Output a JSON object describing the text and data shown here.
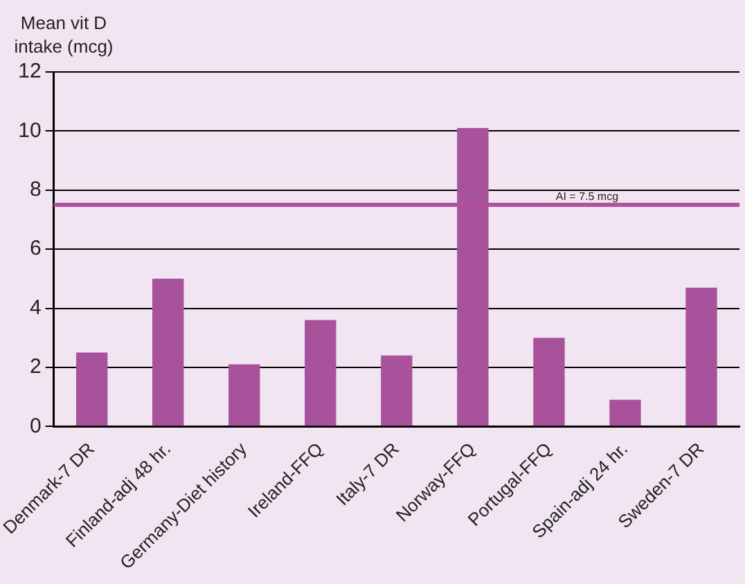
{
  "chart_data": {
    "type": "bar",
    "ylabel": "Mean vit D intake (mcg)",
    "categories": [
      "Denmark-7 DR",
      "Finland-adj 48 hr.",
      "Germany-Diet history",
      "Ireland-FFQ",
      "Italy-7 DR",
      "Norway-FFQ",
      "Portugal-FFQ",
      "Spain-adj 24 hr.",
      "Sweden-7 DR"
    ],
    "values": [
      2.5,
      5.0,
      2.1,
      3.6,
      2.4,
      10.1,
      3.0,
      0.9,
      4.7
    ],
    "color": "#a9529c",
    "ylim": [
      0,
      12
    ],
    "yticks": [
      0,
      2,
      4,
      6,
      8,
      10,
      12
    ],
    "grid": "y",
    "legend": false,
    "ref_lines": [
      {
        "axis": "y",
        "value": 7.5,
        "label": "AI = 7.5 mcg",
        "color": "#b0509f"
      }
    ]
  }
}
